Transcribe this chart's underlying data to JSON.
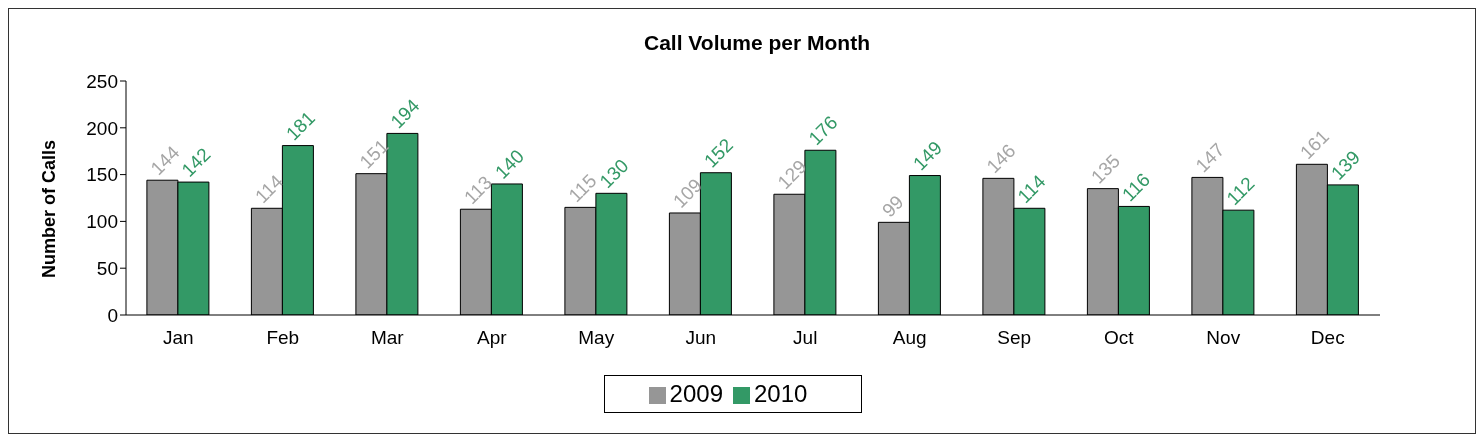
{
  "chart_data": {
    "type": "bar",
    "title": "Call Volume per Month",
    "ylabel": "Number of Calls",
    "categories": [
      "Jan",
      "Feb",
      "Mar",
      "Apr",
      "May",
      "Jun",
      "Jul",
      "Aug",
      "Sep",
      "Oct",
      "Nov",
      "Dec"
    ],
    "series": [
      {
        "name": "2009",
        "color": "#969696",
        "values": [
          144,
          114,
          151,
          113,
          115,
          109,
          129,
          99,
          146,
          135,
          147,
          161
        ]
      },
      {
        "name": "2010",
        "color": "#339966",
        "values": [
          142,
          181,
          194,
          140,
          130,
          152,
          176,
          149,
          114,
          116,
          112,
          139
        ]
      }
    ],
    "ylim": [
      0,
      250
    ],
    "yticks": [
      0,
      50,
      100,
      150,
      200,
      250
    ],
    "grid": false,
    "legend": "bottom",
    "data_labels": true
  }
}
